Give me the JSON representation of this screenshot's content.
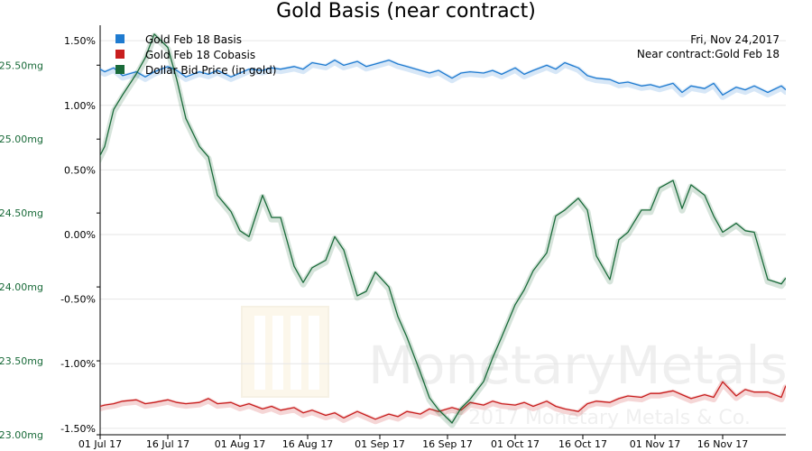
{
  "chart_data": {
    "type": "line",
    "title": "Gold Basis (near contract)",
    "info": {
      "date": "Fri, Nov 24,2017",
      "contract": "Near contract:Gold Feb 18"
    },
    "watermark": {
      "name": "MonetaryMetals",
      "copyright": "© 2017 Monetary Metals & Co."
    },
    "x_ticks": [
      "01 Jul 17",
      "16 Jul 17",
      "01 Aug 17",
      "16 Aug 17",
      "01 Sep 17",
      "16 Sep 17",
      "01 Oct 17",
      "16 Oct 17",
      "01 Nov 17",
      "16 Nov 17"
    ],
    "left_axis": {
      "ticks": [
        "23.00mg",
        "23.50mg",
        "24.00mg",
        "24.50mg",
        "25.00mg",
        "25.50mg"
      ],
      "values": [
        23.0,
        23.5,
        24.0,
        24.5,
        25.0,
        25.5
      ],
      "ylim": [
        23.0,
        25.77
      ]
    },
    "right_axis": {
      "ticks": [
        "-1.50%",
        "-1.00%",
        "-0.50%",
        "0.00%",
        "0.50%",
        "1.00%",
        "1.50%"
      ],
      "values": [
        -1.5,
        -1.0,
        -0.5,
        0.0,
        0.5,
        1.0,
        1.5
      ],
      "ylim": [
        -1.55,
        1.62
      ]
    },
    "colors": {
      "basis": "#1f7bd0",
      "cobasis": "#c81e1e",
      "price": "#1a6b3a",
      "grid": "#e6e6e6",
      "left_tick": "#1a6b3a"
    },
    "legend": [
      {
        "label": "Gold Feb 18 Basis",
        "color": "#1f7bd0"
      },
      {
        "label": "Gold Feb 18 Cobasis",
        "color": "#c81e1e"
      },
      {
        "label": "Dollar Bid Price (in gold)",
        "color": "#1a6b3a"
      }
    ],
    "series": [
      {
        "name": "Gold Feb 18 Basis",
        "axis": "right",
        "x": [
          -1,
          1,
          3,
          5,
          8,
          10,
          12,
          15,
          17,
          19,
          22,
          24,
          26,
          29,
          31,
          33,
          36,
          38,
          40,
          43,
          45,
          47,
          50,
          52,
          54,
          57,
          59,
          61,
          64,
          66,
          68,
          71,
          73,
          75,
          78,
          80,
          82,
          85,
          87,
          89,
          92,
          94,
          96,
          99,
          101,
          103,
          106,
          108,
          110,
          113,
          115,
          117,
          120,
          122,
          124,
          127,
          129,
          131,
          134,
          136,
          138,
          141,
          143,
          145,
          148,
          151,
          152
        ],
        "y": [
          1.3,
          1.26,
          1.29,
          1.23,
          1.26,
          1.22,
          1.26,
          1.3,
          1.27,
          1.22,
          1.26,
          1.24,
          1.27,
          1.22,
          1.25,
          1.28,
          1.27,
          1.29,
          1.28,
          1.3,
          1.28,
          1.33,
          1.31,
          1.35,
          1.31,
          1.34,
          1.3,
          1.32,
          1.35,
          1.32,
          1.3,
          1.27,
          1.25,
          1.27,
          1.21,
          1.25,
          1.26,
          1.25,
          1.27,
          1.24,
          1.29,
          1.24,
          1.27,
          1.31,
          1.28,
          1.33,
          1.29,
          1.23,
          1.21,
          1.2,
          1.17,
          1.18,
          1.15,
          1.16,
          1.14,
          1.17,
          1.1,
          1.15,
          1.13,
          1.17,
          1.08,
          1.14,
          1.12,
          1.15,
          1.1,
          1.15,
          1.12
        ]
      },
      {
        "name": "Gold Feb 18 Cobasis",
        "axis": "right",
        "x": [
          -1,
          1,
          3,
          5,
          8,
          10,
          12,
          15,
          17,
          19,
          22,
          24,
          26,
          29,
          31,
          33,
          36,
          38,
          40,
          43,
          45,
          47,
          50,
          52,
          54,
          57,
          59,
          61,
          64,
          66,
          68,
          71,
          73,
          75,
          78,
          80,
          82,
          85,
          87,
          89,
          92,
          94,
          96,
          99,
          101,
          103,
          106,
          108,
          110,
          113,
          115,
          117,
          120,
          122,
          124,
          127,
          129,
          131,
          134,
          136,
          138,
          141,
          143,
          145,
          148,
          151,
          152
        ],
        "y": [
          -1.34,
          -1.32,
          -1.31,
          -1.29,
          -1.28,
          -1.31,
          -1.3,
          -1.28,
          -1.3,
          -1.31,
          -1.3,
          -1.27,
          -1.31,
          -1.3,
          -1.33,
          -1.31,
          -1.35,
          -1.33,
          -1.36,
          -1.34,
          -1.38,
          -1.36,
          -1.4,
          -1.38,
          -1.42,
          -1.37,
          -1.4,
          -1.43,
          -1.39,
          -1.41,
          -1.37,
          -1.39,
          -1.35,
          -1.37,
          -1.34,
          -1.36,
          -1.3,
          -1.32,
          -1.29,
          -1.31,
          -1.32,
          -1.3,
          -1.33,
          -1.29,
          -1.33,
          -1.35,
          -1.37,
          -1.31,
          -1.29,
          -1.3,
          -1.27,
          -1.25,
          -1.26,
          -1.23,
          -1.23,
          -1.21,
          -1.24,
          -1.27,
          -1.24,
          -1.26,
          -1.14,
          -1.25,
          -1.2,
          -1.22,
          -1.22,
          -1.26,
          -1.17
        ]
      },
      {
        "name": "Dollar Bid Price (in gold)",
        "axis": "left",
        "x": [
          -1,
          1,
          3,
          5,
          8,
          10,
          12,
          15,
          17,
          19,
          22,
          24,
          26,
          29,
          31,
          33,
          36,
          38,
          40,
          43,
          45,
          47,
          50,
          52,
          54,
          57,
          59,
          61,
          64,
          66,
          68,
          71,
          73,
          75,
          78,
          80,
          82,
          85,
          87,
          89,
          92,
          94,
          96,
          99,
          101,
          103,
          106,
          108,
          110,
          113,
          115,
          117,
          120,
          122,
          124,
          127,
          129,
          131,
          134,
          136,
          138,
          141,
          143,
          145,
          148,
          151,
          152
        ],
        "y": [
          24.83,
          24.95,
          25.2,
          25.3,
          25.44,
          25.55,
          25.71,
          25.62,
          25.4,
          25.14,
          24.95,
          24.88,
          24.62,
          24.51,
          24.38,
          24.34,
          24.62,
          24.47,
          24.47,
          24.14,
          24.03,
          24.13,
          24.18,
          24.34,
          24.25,
          23.94,
          23.97,
          24.1,
          24.0,
          23.8,
          23.66,
          23.42,
          23.25,
          23.17,
          23.08,
          23.18,
          23.24,
          23.36,
          23.52,
          23.66,
          23.88,
          23.98,
          24.11,
          24.23,
          24.48,
          24.52,
          24.6,
          24.52,
          24.21,
          24.05,
          24.32,
          24.37,
          24.52,
          24.52,
          24.67,
          24.72,
          24.53,
          24.69,
          24.62,
          24.48,
          24.37,
          24.43,
          24.38,
          24.37,
          24.05,
          24.02,
          24.06
        ]
      }
    ]
  }
}
